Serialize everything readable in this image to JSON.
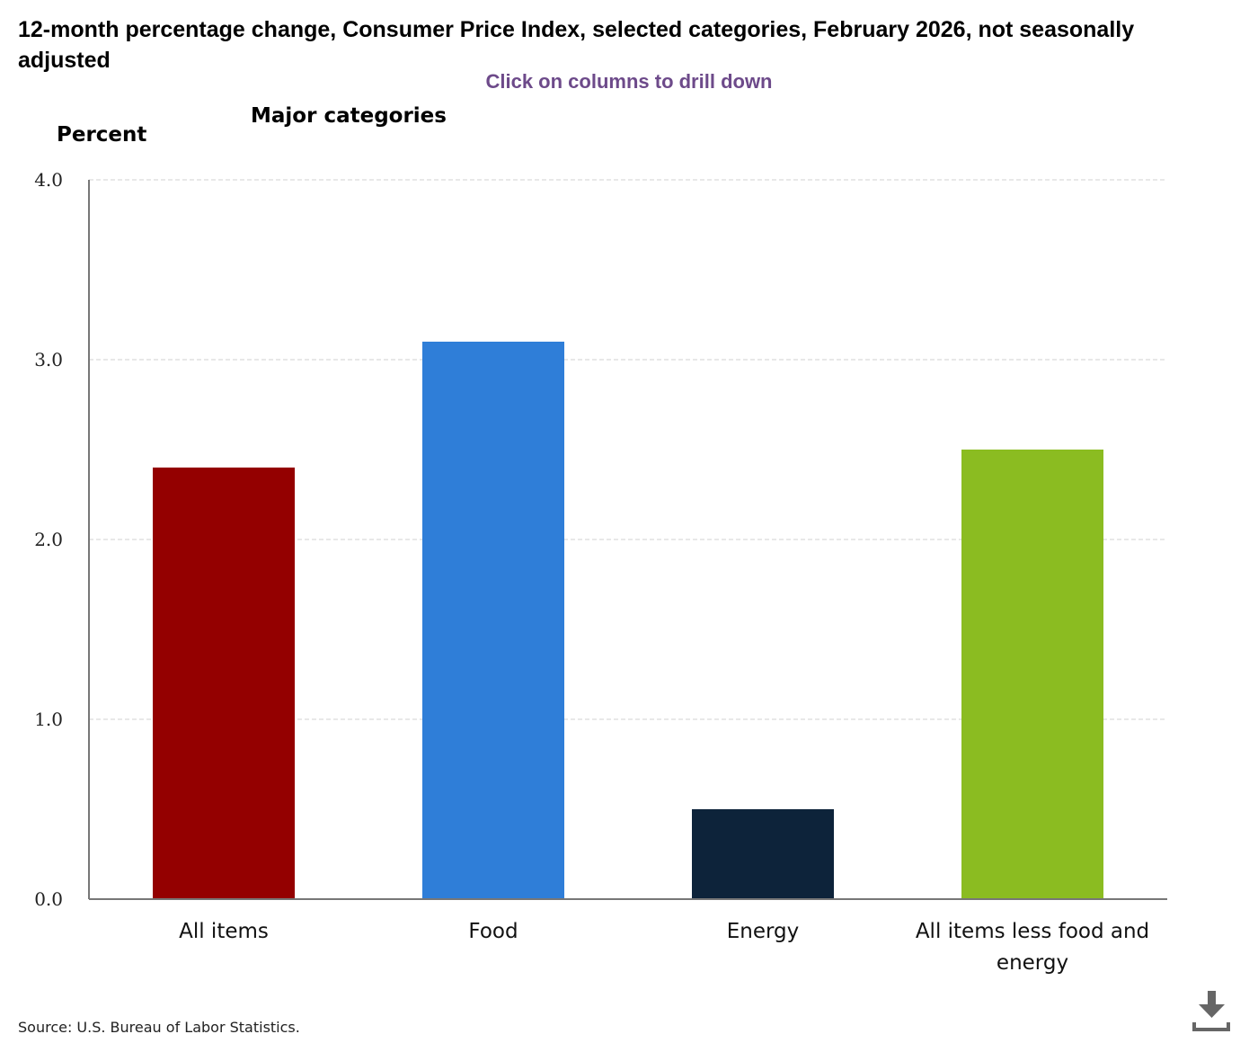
{
  "chart_data": {
    "type": "bar",
    "title": "12-month percentage change, Consumer Price Index, selected categories, February 2026, not seasonally adjusted",
    "subtitle": "Click on columns to drill down",
    "level_label": "Major categories",
    "ylabel": "Percent",
    "xlabel": "",
    "ylim": [
      0,
      4
    ],
    "yticks": [
      "0.0",
      "1.0",
      "2.0",
      "3.0",
      "4.0"
    ],
    "grid": true,
    "categories": [
      "All items",
      "Food",
      "Energy",
      "All items less food and energy"
    ],
    "values": [
      2.4,
      3.1,
      0.5,
      2.5
    ],
    "colors": [
      "#940000",
      "#2f7ed8",
      "#0d233a",
      "#8bbc21"
    ],
    "source": "Source: U.S. Bureau of Labor Statistics."
  },
  "icons": {
    "download": "download-icon"
  }
}
